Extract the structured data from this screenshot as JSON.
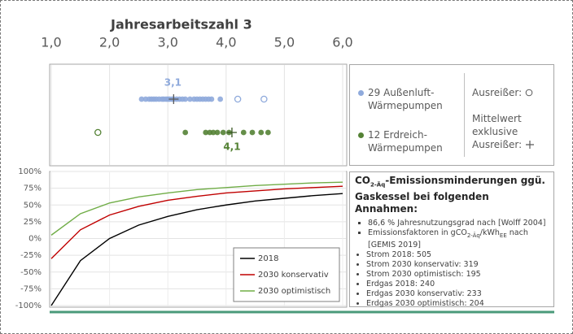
{
  "chart_data": [
    {
      "type": "strip",
      "title": "Jahresarbeitszahl 3",
      "xlim": [
        1,
        6
      ],
      "xticks": [
        {
          "value": 1,
          "label": "1,0"
        },
        {
          "value": 2,
          "label": "2,0"
        },
        {
          "value": 3,
          "label": "3,0"
        },
        {
          "value": 4,
          "label": "4,0"
        },
        {
          "value": 5,
          "label": "5,0"
        },
        {
          "value": 6,
          "label": "6,0"
        }
      ],
      "grid": true,
      "outlier_label": "Ausreißer:",
      "mean_label": "Mittelwert exklusive Ausreißer:",
      "series": [
        {
          "name": "29 Außenluft-Wärmepumpen",
          "color": "#8faadc",
          "values": [
            2.55,
            2.62,
            2.68,
            2.72,
            2.76,
            2.8,
            2.85,
            2.9,
            2.93,
            2.97,
            3.0,
            3.03,
            3.07,
            3.1,
            3.15,
            3.2,
            3.25,
            3.3,
            3.38,
            3.45,
            3.5,
            3.55,
            3.6,
            3.65,
            3.7,
            3.75,
            3.9
          ],
          "outliers": [
            4.2,
            4.65
          ],
          "mean": 3.1,
          "mean_label": "3,1"
        },
        {
          "name": "12 Erdreich-Wärmepumpen",
          "color": "#548235",
          "values": [
            3.3,
            3.65,
            3.72,
            3.78,
            3.85,
            3.95,
            4.05,
            4.3,
            4.45,
            4.6,
            4.72
          ],
          "outliers": [
            1.8
          ],
          "mean": 4.1,
          "mean_label": "4,1"
        }
      ]
    },
    {
      "type": "line",
      "xlim": [
        1,
        6
      ],
      "xticks": [
        1,
        2,
        3,
        4,
        5,
        6
      ],
      "ylim": [
        -100,
        100
      ],
      "yticks": [
        {
          "value": 100,
          "label": "100%"
        },
        {
          "value": 75,
          "label": "75%"
        },
        {
          "value": 50,
          "label": "50%"
        },
        {
          "value": 25,
          "label": "25%"
        },
        {
          "value": 0,
          "label": "0%"
        },
        {
          "value": -25,
          "label": "-25%"
        },
        {
          "value": -50,
          "label": "-50%"
        },
        {
          "value": -75,
          "label": "-75%"
        },
        {
          "value": -100,
          "label": "-100%"
        }
      ],
      "grid": true,
      "legend": "bottom-right",
      "x": [
        1,
        1.5,
        2,
        2.5,
        3,
        3.5,
        4,
        4.5,
        5,
        5.5,
        6
      ],
      "series": [
        {
          "name": "2018",
          "color": "#000000",
          "values": [
            -100,
            -33,
            0,
            20,
            33,
            43,
            50,
            56,
            60,
            64,
            67
          ]
        },
        {
          "name": "2030 konservativ",
          "color": "#c00000",
          "values": [
            -30,
            13,
            35,
            48,
            57,
            63,
            68,
            71,
            74,
            76,
            78
          ]
        },
        {
          "name": "2030 optimistisch",
          "color": "#70ad47",
          "values": [
            5,
            37,
            53,
            62,
            68,
            73,
            76,
            79,
            81,
            83,
            84
          ]
        }
      ]
    }
  ],
  "notes": {
    "title": [
      "CO",
      "2-Äq",
      "-Emissionsminderungen ggü. Gaskessel bei folgenden Annahmen:"
    ],
    "assumption": "86,6 % Jahresnutzungsgrad nach [Wolff 2004]",
    "factors": [
      "Emissionsfaktoren in gCO",
      "2-Äq",
      "/kWh",
      "EE",
      " nach [GEMIS 2019]"
    ],
    "items": [
      "Strom 2018: 505",
      "Strom 2030 konservativ: 319",
      "Strom 2030 optimistisch: 195",
      "Erdgas 2018: 240",
      "Erdgas 2030 konservativ: 233",
      "Erdgas 2030 optimistisch: 204"
    ]
  }
}
